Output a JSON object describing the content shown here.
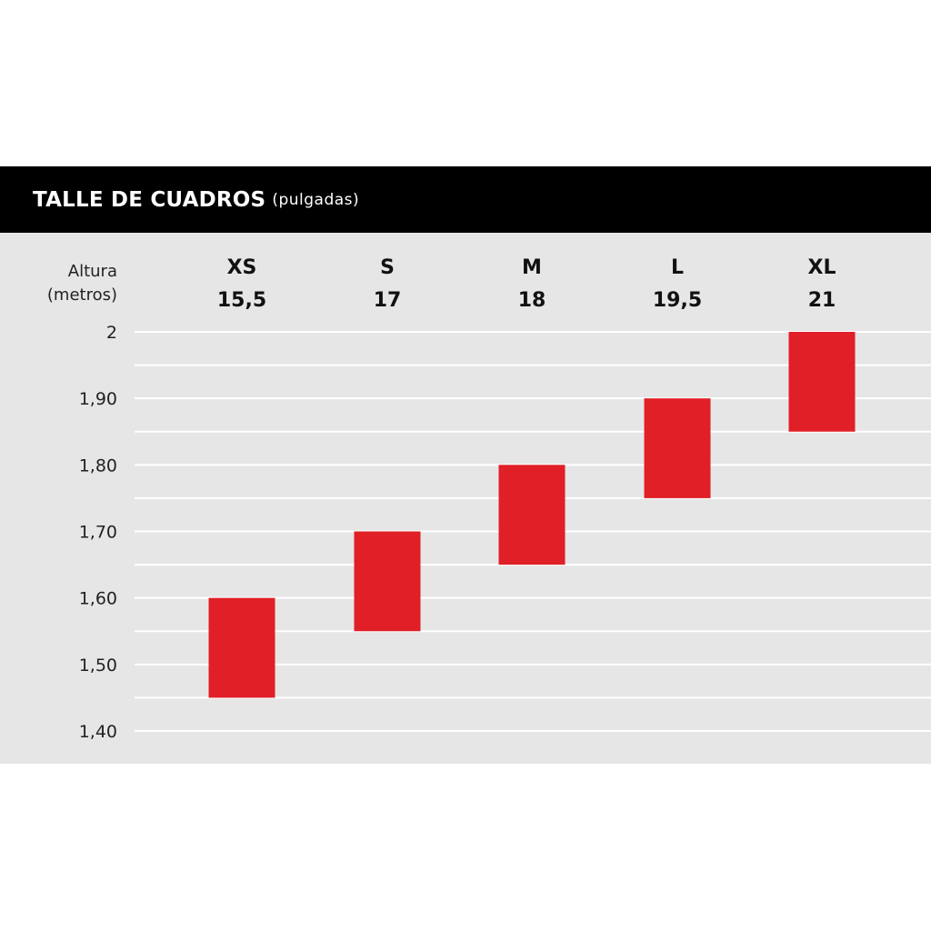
{
  "header": {
    "title": "TALLE DE CUADROS",
    "subtitle": "(pulgadas)"
  },
  "colors": {
    "header_bg": "#000000",
    "panel_bg": "#e6e6e6",
    "gridline": "#ffffff",
    "bar": "#e01f26"
  },
  "chart_data": {
    "type": "bar",
    "title": "TALLE DE CUADROS",
    "subtitle": "(pulgadas)",
    "ylabel": [
      "Altura",
      "(metros)"
    ],
    "categories": [
      {
        "size": "XS",
        "frame": "15,5"
      },
      {
        "size": "S",
        "frame": "17"
      },
      {
        "size": "M",
        "frame": "18"
      },
      {
        "size": "L",
        "frame": "19,5"
      },
      {
        "size": "XL",
        "frame": "21"
      }
    ],
    "ranges": [
      {
        "low": 1.45,
        "high": 1.6
      },
      {
        "low": 1.55,
        "high": 1.7
      },
      {
        "low": 1.65,
        "high": 1.8
      },
      {
        "low": 1.75,
        "high": 1.9
      },
      {
        "low": 1.85,
        "high": 2.0
      }
    ],
    "ylim": [
      1.4,
      2.0
    ],
    "yticks": [
      {
        "value": 2.0,
        "label": "2"
      },
      {
        "value": 1.9,
        "label": "1,90"
      },
      {
        "value": 1.8,
        "label": "1,80"
      },
      {
        "value": 1.7,
        "label": "1,70"
      },
      {
        "value": 1.6,
        "label": "1,60"
      },
      {
        "value": 1.5,
        "label": "1,50"
      },
      {
        "value": 1.4,
        "label": "1,40"
      }
    ],
    "minor_grid_step": 0.05,
    "grid": true
  }
}
